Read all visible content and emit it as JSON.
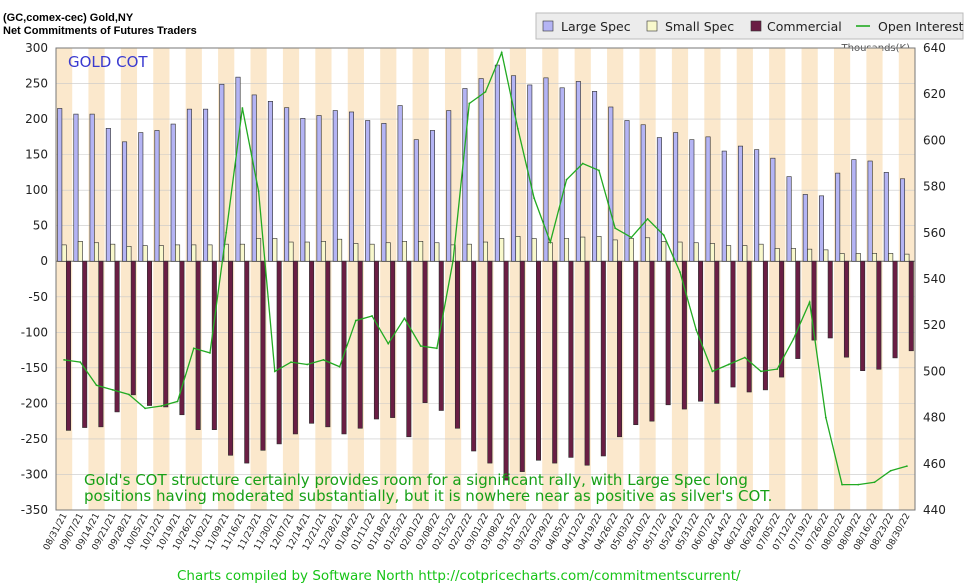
{
  "header": {
    "line1": "(GC,comex-cec) Gold,NY",
    "line2": "Net Commitments of Futures Traders"
  },
  "inner_label": "GOLD COT",
  "right_axis_units": "Thousands(K)",
  "annotation": {
    "line1": "Gold's COT structure certainly provides room for  a significant rally, with Large Spec long",
    "line2": "positions having moderated substantially, but it is nowhere near as positive as silver's COT."
  },
  "footer": "Charts compiled by Software North  http://cotpricecharts.com/commitmentscurrent/",
  "colors": {
    "large_spec": "#b4b4f4",
    "small_spec": "#f8f8cc",
    "commercial": "#6a1e44",
    "open_interest": "#22aa22",
    "band": "#fbe8cc"
  },
  "chart_data": {
    "type": "bar",
    "ylim": [
      -350,
      300
    ],
    "y_ticks": [
      300,
      250,
      200,
      150,
      100,
      50,
      0,
      -50,
      -100,
      -150,
      -200,
      -250,
      -300,
      -350
    ],
    "y2lim": [
      440,
      640
    ],
    "y2_ticks": [
      640,
      620,
      600,
      580,
      560,
      540,
      520,
      500,
      480,
      460,
      440
    ],
    "legend": [
      {
        "key": "large_spec",
        "label": "Large Spec"
      },
      {
        "key": "small_spec",
        "label": "Small Spec"
      },
      {
        "key": "commercial",
        "label": "Commercial"
      },
      {
        "key": "open_interest",
        "label": "Open Interest"
      }
    ],
    "categories": [
      "08/31/21",
      "09/07/21",
      "09/14/21",
      "09/21/21",
      "09/28/21",
      "10/05/21",
      "10/12/21",
      "10/19/21",
      "10/26/21",
      "11/02/21",
      "11/09/21",
      "11/16/21",
      "11/23/21",
      "11/30/21",
      "12/07/21",
      "12/14/21",
      "12/21/21",
      "12/28/21",
      "01/04/22",
      "01/11/22",
      "01/18/22",
      "01/25/22",
      "02/01/22",
      "02/08/22",
      "02/15/22",
      "02/22/22",
      "03/01/22",
      "03/08/22",
      "03/15/22",
      "03/22/22",
      "03/29/22",
      "04/05/22",
      "04/12/22",
      "04/19/22",
      "04/26/22",
      "05/03/22",
      "05/10/22",
      "05/17/22",
      "05/24/22",
      "05/31/22",
      "06/07/22",
      "06/14/22",
      "06/21/22",
      "06/28/22",
      "07/05/22",
      "07/12/22",
      "07/19/22",
      "07/26/22",
      "08/02/22",
      "08/09/22",
      "08/16/22",
      "08/23/22",
      "08/30/22"
    ],
    "series": [
      {
        "name": "Large Spec",
        "values": [
          215,
          207,
          207,
          187,
          168,
          181,
          184,
          193,
          214,
          214,
          249,
          259,
          234,
          225,
          216,
          201,
          205,
          212,
          210,
          198,
          194,
          219,
          171,
          184,
          212,
          243,
          257,
          276,
          261,
          248,
          258,
          244,
          253,
          239,
          217,
          198,
          192,
          174,
          181,
          171,
          175,
          155,
          162,
          157,
          145,
          119,
          94,
          92,
          124,
          143,
          141,
          125,
          116
        ]
      },
      {
        "name": "Small Spec",
        "values": [
          23,
          28,
          26,
          24,
          21,
          22,
          22,
          23,
          23,
          23,
          24,
          24,
          32,
          32,
          27,
          27,
          28,
          31,
          25,
          24,
          26,
          28,
          28,
          26,
          23,
          24,
          27,
          32,
          35,
          32,
          26,
          32,
          34,
          35,
          30,
          32,
          33,
          28,
          27,
          26,
          25,
          22,
          22,
          24,
          18,
          18,
          17,
          16,
          11,
          11,
          11,
          11,
          10
        ]
      },
      {
        "name": "Commercial",
        "values": [
          -238,
          -234,
          -233,
          -212,
          -188,
          -203,
          -205,
          -216,
          -237,
          -237,
          -273,
          -284,
          -266,
          -257,
          -243,
          -228,
          -233,
          -243,
          -235,
          -222,
          -220,
          -247,
          -199,
          -210,
          -235,
          -267,
          -284,
          -308,
          -296,
          -280,
          -284,
          -276,
          -287,
          -274,
          -247,
          -230,
          -225,
          -202,
          -208,
          -197,
          -200,
          -177,
          -184,
          -181,
          -163,
          -137,
          -111,
          -108,
          -135,
          -154,
          -152,
          -136,
          -126
        ]
      },
      {
        "name": "Open Interest",
        "values": [
          505,
          504,
          494,
          492,
          490,
          484,
          485,
          487,
          510,
          508,
          560,
          614,
          578,
          500,
          504,
          503,
          505,
          502,
          522,
          524,
          512,
          523,
          511,
          510,
          548,
          616,
          621,
          638,
          605,
          575,
          556,
          583,
          590,
          587,
          562,
          558,
          566,
          559,
          543,
          518,
          500,
          503,
          506,
          500,
          501,
          514,
          530,
          480,
          451,
          451,
          452,
          457,
          459
        ]
      }
    ]
  }
}
